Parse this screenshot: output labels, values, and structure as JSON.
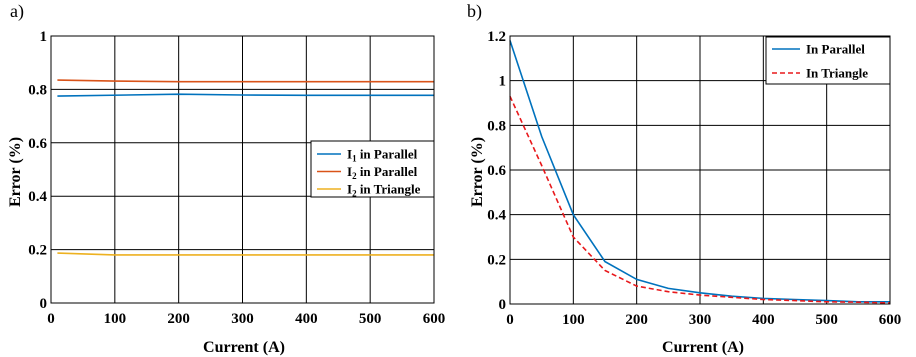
{
  "chart_data": [
    {
      "panel": "a)",
      "type": "line",
      "xlabel": "Current (A)",
      "ylabel": "Error (%)",
      "xlim": [
        0,
        600
      ],
      "ylim": [
        0,
        1
      ],
      "xticks": [
        "0",
        "100",
        "200",
        "300",
        "400",
        "500",
        "600"
      ],
      "yticks": [
        "0",
        "0.2",
        "0.4",
        "0.6",
        "0.8",
        "1"
      ],
      "grid": true,
      "legend_position": "right-middle",
      "series": [
        {
          "name_main": "I",
          "name_sub": "1",
          "name_rest": " in Parallel",
          "color": "#0072BD",
          "x": [
            10,
            200,
            300,
            400,
            500,
            600
          ],
          "y": [
            0.775,
            0.782,
            0.779,
            0.778,
            0.778,
            0.778
          ]
        },
        {
          "name_main": "I",
          "name_sub": "2",
          "name_rest": " in Parallel",
          "color": "#D95319",
          "x": [
            10,
            100,
            200,
            300,
            400,
            500,
            600
          ],
          "y": [
            0.835,
            0.831,
            0.829,
            0.829,
            0.829,
            0.829,
            0.829
          ]
        },
        {
          "name_main": "I",
          "name_sub": "2",
          "name_rest": " in Triangle",
          "color": "#EDB120",
          "x": [
            10,
            100,
            200,
            300,
            400,
            500,
            600
          ],
          "y": [
            0.187,
            0.18,
            0.18,
            0.18,
            0.18,
            0.18,
            0.18
          ]
        }
      ]
    },
    {
      "panel": "b)",
      "type": "line",
      "xlabel": "Current (A)",
      "ylabel": "Error (%)",
      "xlim": [
        0,
        600
      ],
      "ylim": [
        0,
        1.2
      ],
      "xticks": [
        "0",
        "100",
        "200",
        "300",
        "400",
        "500",
        "600"
      ],
      "yticks": [
        "0",
        "0.2",
        "0.4",
        "0.6",
        "0.8",
        "1",
        "1.2"
      ],
      "grid": true,
      "legend_position": "top-right",
      "series": [
        {
          "name": "In Parallel",
          "color": "#0072BD",
          "style": "solid",
          "x": [
            0,
            50,
            100,
            150,
            200,
            250,
            300,
            350,
            400,
            450,
            500,
            550,
            600
          ],
          "y": [
            1.18,
            0.75,
            0.4,
            0.19,
            0.11,
            0.07,
            0.05,
            0.035,
            0.025,
            0.02,
            0.015,
            0.01,
            0.01
          ]
        },
        {
          "name": "In Triangle",
          "color": "#E8191C",
          "style": "dashed",
          "x": [
            0,
            50,
            100,
            150,
            200,
            250,
            300,
            350,
            400,
            450,
            500,
            550,
            600
          ],
          "y": [
            0.93,
            0.62,
            0.3,
            0.15,
            0.08,
            0.055,
            0.04,
            0.03,
            0.02,
            0.015,
            0.01,
            0.008,
            0.005
          ]
        }
      ]
    }
  ]
}
